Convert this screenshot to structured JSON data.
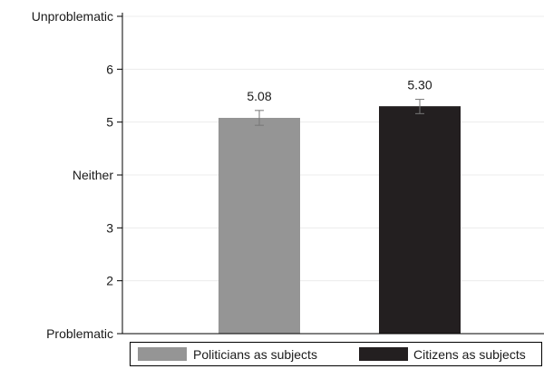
{
  "chart_data": {
    "type": "bar",
    "title": "",
    "xlabel": "",
    "ylabel": "",
    "ylim": [
      1,
      7
    ],
    "yticks": [
      {
        "value": 7,
        "label": "Unproblematic"
      },
      {
        "value": 6,
        "label": "6"
      },
      {
        "value": 5,
        "label": "5"
      },
      {
        "value": 4,
        "label": "Neither"
      },
      {
        "value": 3,
        "label": "3"
      },
      {
        "value": 2,
        "label": "2"
      },
      {
        "value": 1,
        "label": "Problematic"
      }
    ],
    "grid": true,
    "legend_position": "bottom",
    "series": [
      {
        "name": "Politicians as subjects",
        "value": 5.08,
        "label": "5.08",
        "ci": [
          4.94,
          5.22
        ],
        "color": "#959595"
      },
      {
        "name": "Citizens as subjects",
        "value": 5.3,
        "label": "5.30",
        "ci": [
          5.16,
          5.43
        ],
        "color": "#231f20"
      }
    ]
  }
}
